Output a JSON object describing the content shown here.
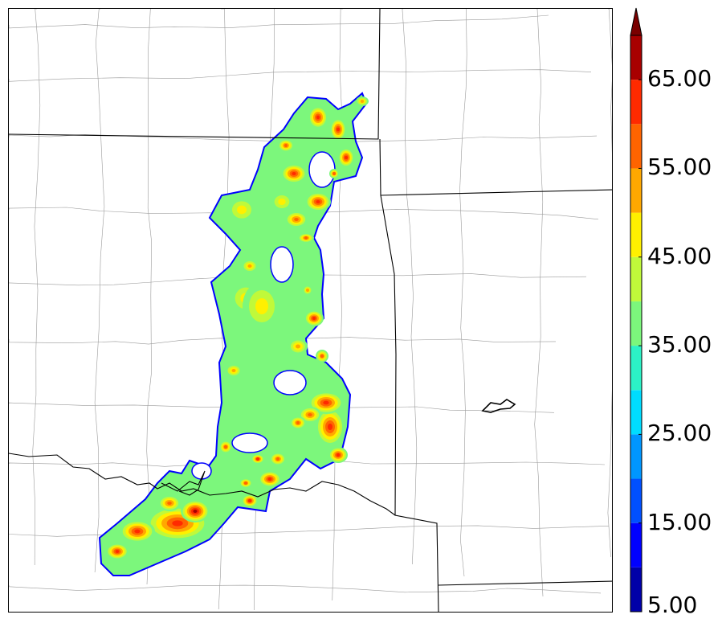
{
  "colorbar": {
    "bins": [
      {
        "min": 5,
        "max": 10,
        "color": "#0000a8"
      },
      {
        "min": 10,
        "max": 15,
        "color": "#0000ff"
      },
      {
        "min": 15,
        "max": 20,
        "color": "#0050ff"
      },
      {
        "min": 20,
        "max": 25,
        "color": "#0096ff"
      },
      {
        "min": 25,
        "max": 30,
        "color": "#00dcff"
      },
      {
        "min": 30,
        "max": 35,
        "color": "#2cf2c6"
      },
      {
        "min": 35,
        "max": 40,
        "color": "#7cf77c"
      },
      {
        "min": 40,
        "max": 45,
        "color": "#c0f93a"
      },
      {
        "min": 45,
        "max": 50,
        "color": "#fff000"
      },
      {
        "min": 50,
        "max": 55,
        "color": "#ffa800"
      },
      {
        "min": 55,
        "max": 60,
        "color": "#ff6400"
      },
      {
        "min": 60,
        "max": 65,
        "color": "#ff2a00"
      },
      {
        "min": 65,
        "max": 70,
        "color": "#a80000"
      }
    ],
    "extend_color": "#7a0000",
    "ticks": [
      {
        "value": 5,
        "label": "5.00"
      },
      {
        "value": 15,
        "label": "15.00"
      },
      {
        "value": 25,
        "label": "25.00"
      },
      {
        "value": 35,
        "label": "35.00"
      },
      {
        "value": 45,
        "label": "45.00"
      },
      {
        "value": 55,
        "label": "55.00"
      },
      {
        "value": 65,
        "label": "65.00"
      }
    ],
    "range": [
      5,
      70
    ],
    "extend": "max"
  },
  "map": {
    "boundary_color": "#000000",
    "county_color": "#9a9a9a",
    "field_levels": [
      5,
      10,
      15,
      20,
      25,
      30,
      35,
      40,
      45,
      50,
      55,
      60,
      65
    ]
  }
}
